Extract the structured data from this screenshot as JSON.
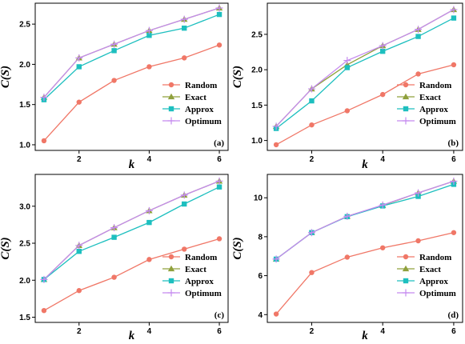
{
  "chart_data": [
    {
      "type": "line",
      "panel_label": "(a)",
      "xlabel": "k",
      "ylabel": "C(S)",
      "x": [
        1,
        2,
        3,
        4,
        5,
        6
      ],
      "xticks": [
        2,
        4,
        6
      ],
      "xlim": [
        0.75,
        6.25
      ],
      "yticks": [
        1.0,
        1.5,
        2.0,
        2.5
      ],
      "ylim": [
        0.93,
        2.76
      ],
      "legend_position": "bottom-right",
      "series": [
        {
          "name": "Random",
          "color": "#F07767",
          "marker": "circle",
          "values": [
            1.05,
            1.53,
            1.8,
            1.97,
            2.08,
            2.24
          ]
        },
        {
          "name": "Exact",
          "color": "#8FA03C",
          "marker": "triangle",
          "values": [
            1.59,
            2.08,
            2.25,
            2.42,
            2.56,
            2.7
          ]
        },
        {
          "name": "Approx",
          "color": "#1DBFBF",
          "marker": "square",
          "values": [
            1.56,
            1.97,
            2.17,
            2.36,
            2.45,
            2.62
          ]
        },
        {
          "name": "Optimum",
          "color": "#C58BEF",
          "marker": "plus",
          "values": [
            1.59,
            2.08,
            2.25,
            2.42,
            2.56,
            2.7
          ]
        }
      ]
    },
    {
      "type": "line",
      "panel_label": "(b)",
      "xlabel": "k",
      "ylabel": "C(S)",
      "x": [
        1,
        2,
        3,
        4,
        5,
        6
      ],
      "xticks": [
        2,
        4,
        6
      ],
      "xlim": [
        0.75,
        6.25
      ],
      "yticks": [
        1.0,
        1.5,
        2.0,
        2.5
      ],
      "ylim": [
        0.86,
        2.94
      ],
      "legend_position": "bottom-right",
      "series": [
        {
          "name": "Random",
          "color": "#F07767",
          "marker": "circle",
          "values": [
            0.94,
            1.22,
            1.42,
            1.65,
            1.94,
            2.07
          ]
        },
        {
          "name": "Exact",
          "color": "#8FA03C",
          "marker": "triangle",
          "values": [
            1.2,
            1.73,
            2.07,
            2.34,
            2.57,
            2.85
          ]
        },
        {
          "name": "Approx",
          "color": "#1DBFBF",
          "marker": "square",
          "values": [
            1.17,
            1.56,
            2.03,
            2.26,
            2.47,
            2.73
          ]
        },
        {
          "name": "Optimum",
          "color": "#C58BEF",
          "marker": "plus",
          "values": [
            1.2,
            1.73,
            2.13,
            2.34,
            2.57,
            2.85
          ]
        }
      ]
    },
    {
      "type": "line",
      "panel_label": "(c)",
      "xlabel": "k",
      "ylabel": "C(S)",
      "x": [
        1,
        2,
        3,
        4,
        5,
        6
      ],
      "xticks": [
        2,
        4,
        6
      ],
      "xlim": [
        0.75,
        6.25
      ],
      "yticks": [
        1.5,
        2.0,
        2.5,
        3.0
      ],
      "ylim": [
        1.43,
        3.43
      ],
      "legend_position": "bottom-right",
      "series": [
        {
          "name": "Random",
          "color": "#F07767",
          "marker": "circle",
          "values": [
            1.59,
            1.86,
            2.04,
            2.28,
            2.42,
            2.56
          ]
        },
        {
          "name": "Exact",
          "color": "#8FA03C",
          "marker": "triangle",
          "values": [
            2.01,
            2.47,
            2.71,
            2.94,
            3.15,
            3.34
          ]
        },
        {
          "name": "Approx",
          "color": "#1DBFBF",
          "marker": "square",
          "values": [
            2.01,
            2.39,
            2.58,
            2.78,
            3.03,
            3.26
          ]
        },
        {
          "name": "Optimum",
          "color": "#C58BEF",
          "marker": "plus",
          "values": [
            2.01,
            2.47,
            2.71,
            2.94,
            3.15,
            3.34
          ]
        }
      ]
    },
    {
      "type": "line",
      "panel_label": "(d)",
      "xlabel": "k",
      "ylabel": "C(S)",
      "x": [
        1,
        2,
        3,
        4,
        5,
        6
      ],
      "xticks": [
        2,
        4,
        6
      ],
      "xlim": [
        0.75,
        6.25
      ],
      "yticks": [
        4,
        6,
        8,
        10
      ],
      "ylim": [
        3.6,
        11.2
      ],
      "legend_position": "bottom-right",
      "series": [
        {
          "name": "Random",
          "color": "#F07767",
          "marker": "circle",
          "values": [
            4.03,
            6.16,
            6.95,
            7.43,
            7.79,
            8.21
          ]
        },
        {
          "name": "Exact",
          "color": "#8FA03C",
          "marker": "triangle",
          "values": [
            6.85,
            8.21,
            9.05,
            9.61,
            10.25,
            10.85
          ]
        },
        {
          "name": "Approx",
          "color": "#1DBFBF",
          "marker": "square",
          "values": [
            6.85,
            8.21,
            9.03,
            9.58,
            10.07,
            10.69
          ]
        },
        {
          "name": "Optimum",
          "color": "#C58BEF",
          "marker": "plus",
          "values": [
            6.85,
            8.21,
            9.05,
            9.63,
            10.25,
            10.85
          ]
        }
      ]
    }
  ]
}
